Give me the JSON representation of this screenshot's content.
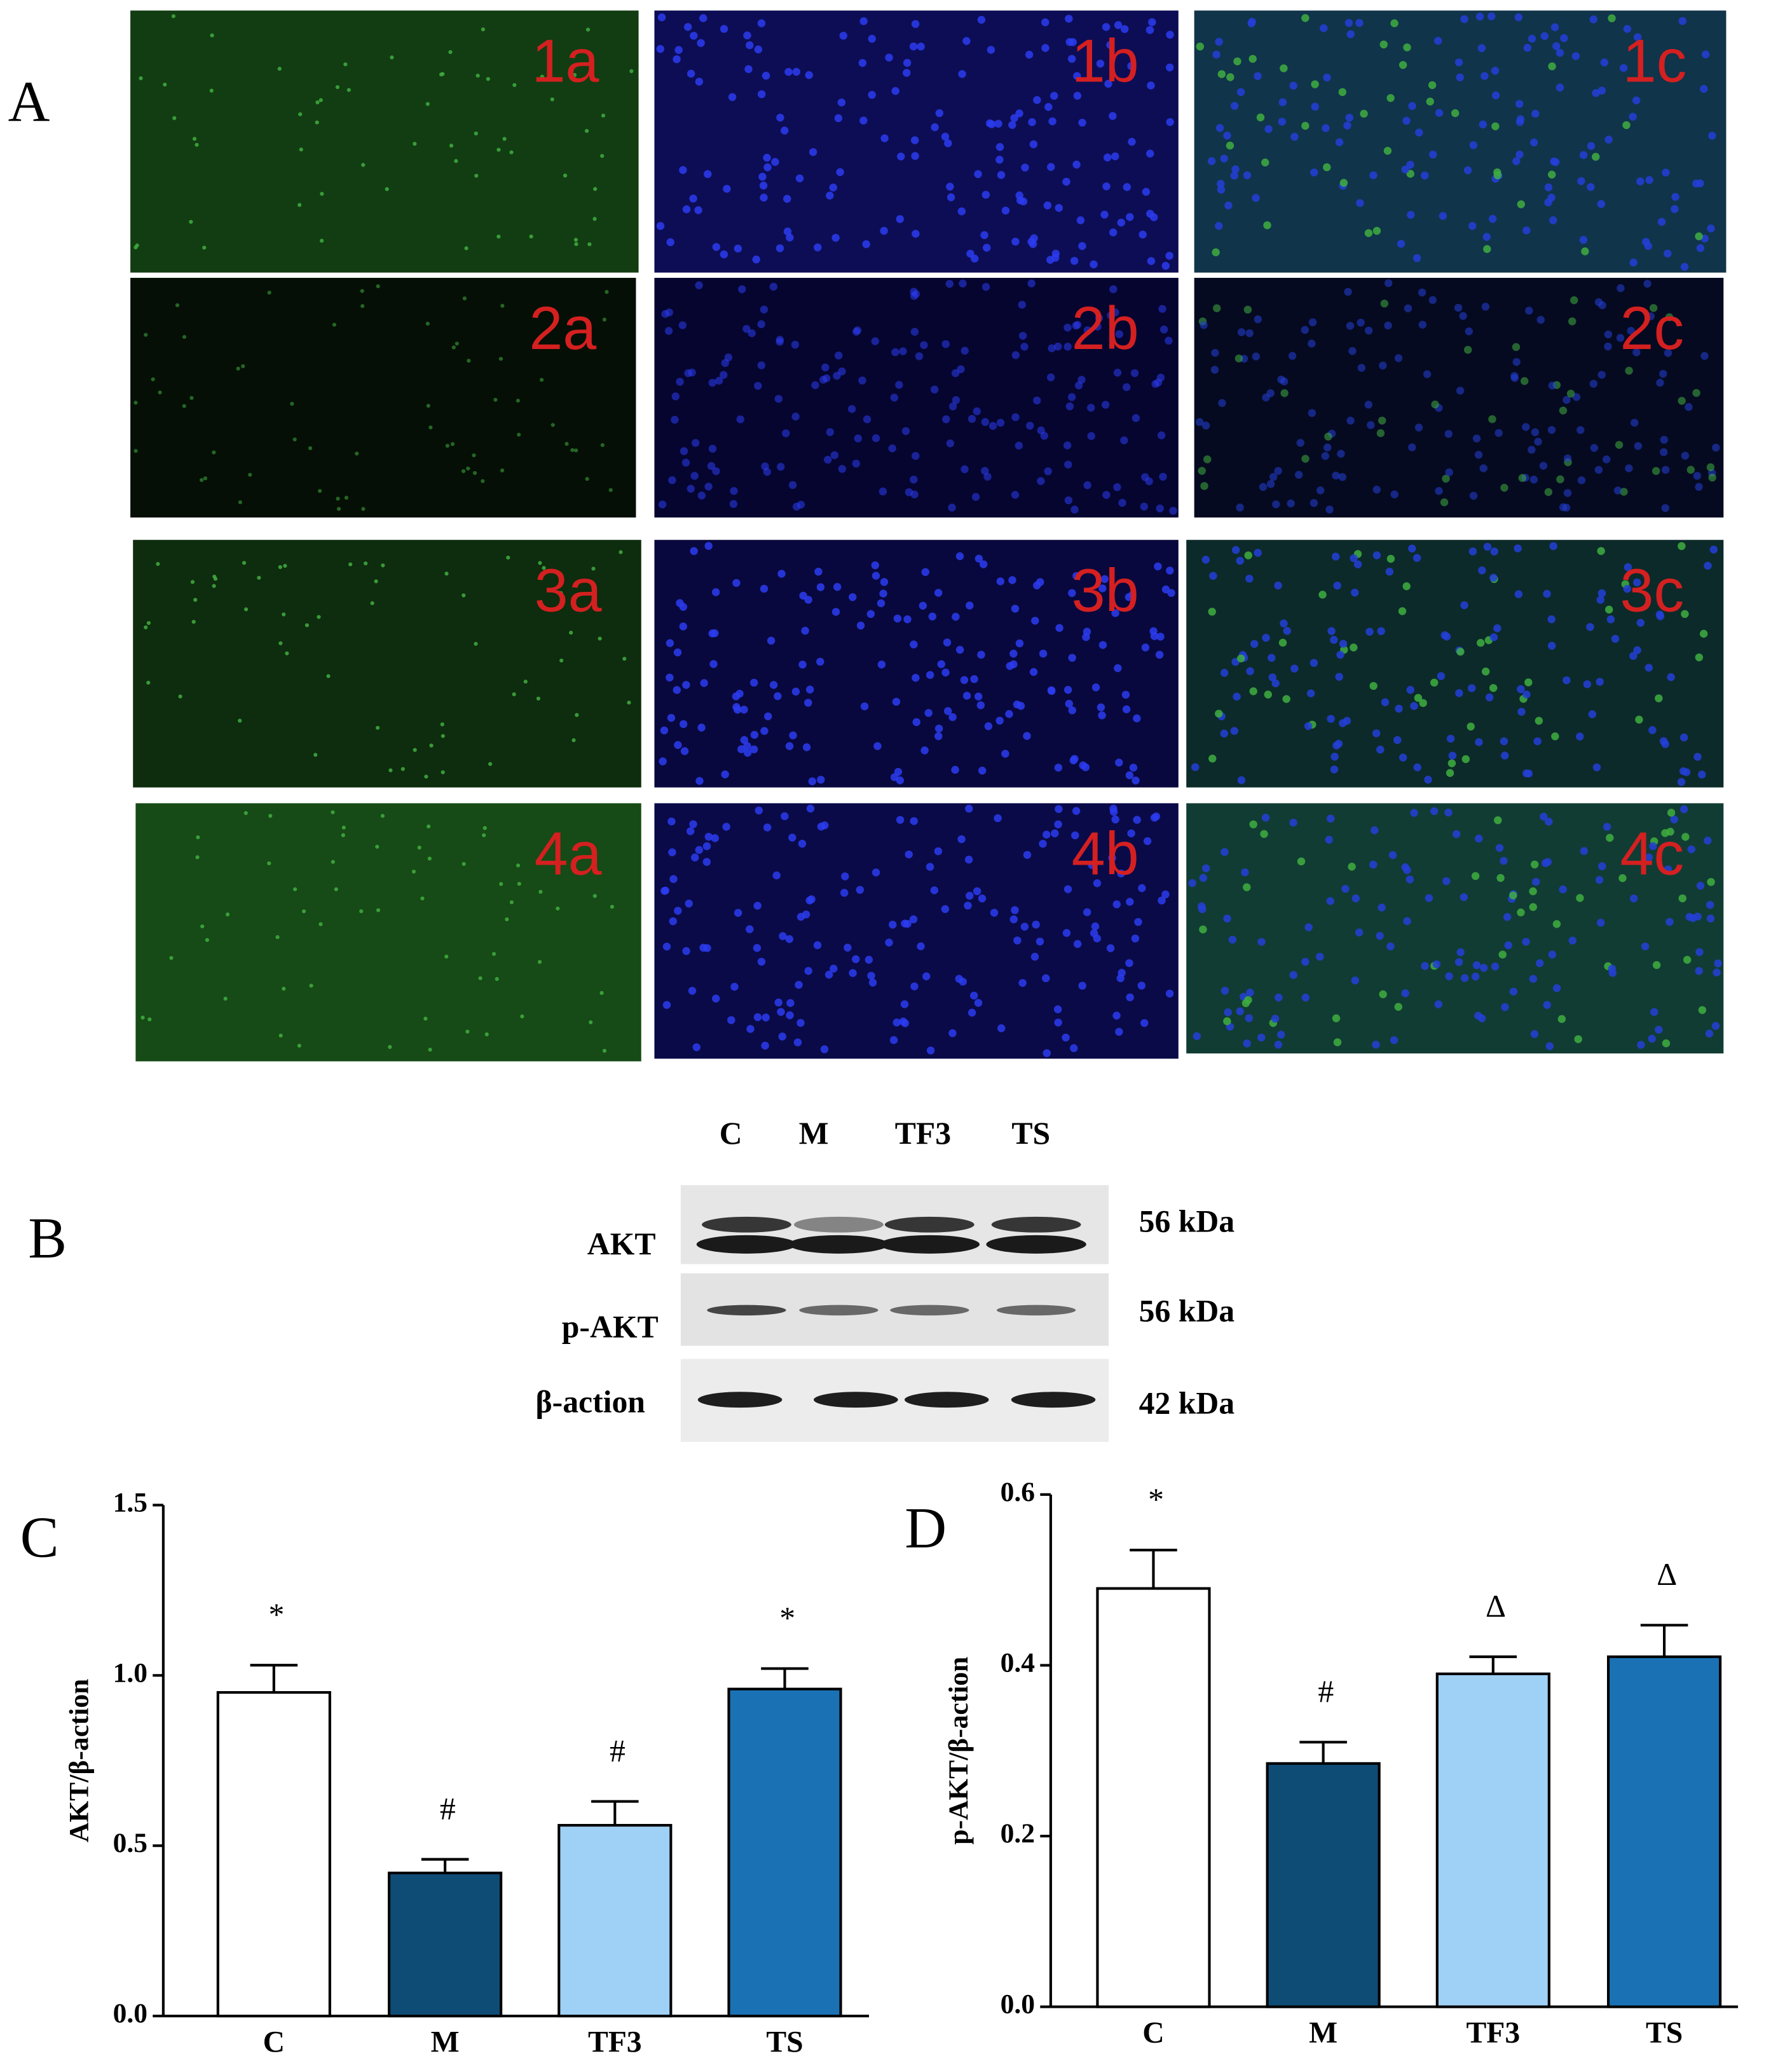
{
  "panel_labels": [
    "A",
    "B",
    "C",
    "D"
  ],
  "micrographs": {
    "rows": [
      [
        "1a",
        "1b",
        "1c"
      ],
      [
        "2a",
        "2b",
        "2c"
      ],
      [
        "3a",
        "3b",
        "3c"
      ],
      [
        "4a",
        "4b",
        "4c"
      ]
    ]
  },
  "blot": {
    "lanes": [
      "C",
      "M",
      "TF3",
      "TS"
    ],
    "rows": [
      {
        "label": "AKT",
        "size": "56 kDa"
      },
      {
        "label": "p-AKT",
        "size": "56 kDa"
      },
      {
        "label": "β-action",
        "size": "42 kDa"
      }
    ]
  },
  "chart_data": [
    {
      "type": "bar",
      "y_label": "AKT/β-action",
      "categories": [
        "C",
        "M",
        "TF3",
        "TS"
      ],
      "values": [
        0.95,
        0.42,
        0.56,
        0.96
      ],
      "errors": [
        0.08,
        0.04,
        0.07,
        0.06
      ],
      "annotations": [
        "*",
        "#",
        "#",
        "*"
      ],
      "colors": [
        "#ffffff",
        "#0f4c75",
        "#9fd0f5",
        "#1a72b5"
      ],
      "ylim": [
        0,
        1.5
      ],
      "yticks": [
        {
          "value": 0,
          "label": "0.0"
        },
        0.5,
        {
          "value": 1,
          "label": "1.0"
        },
        1.5
      ]
    },
    {
      "type": "bar",
      "y_label": "p-AKT/β-action",
      "categories": [
        "C",
        "M",
        "TF3",
        "TS"
      ],
      "values": [
        0.49,
        0.285,
        0.39,
        0.41
      ],
      "errors": [
        0.045,
        0.025,
        0.02,
        0.037
      ],
      "annotations": [
        "*",
        "#",
        "Δ",
        "Δ"
      ],
      "colors": [
        "#ffffff",
        "#0f4c75",
        "#9fd0f5",
        "#1a72b5"
      ],
      "ylim": [
        0,
        0.6
      ],
      "yticks": [
        {
          "value": 0,
          "label": "0.0"
        },
        0.2,
        0.4,
        0.6
      ]
    }
  ]
}
